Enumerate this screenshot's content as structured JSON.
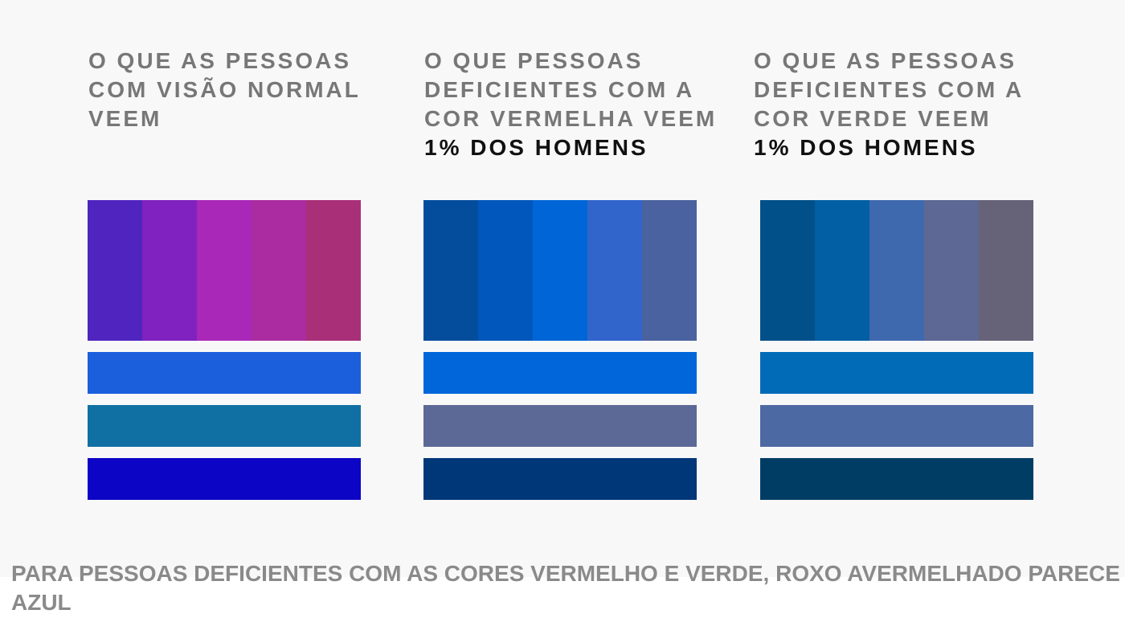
{
  "columns": [
    {
      "lines": [
        "O QUE AS PESSOAS",
        "COM VISÃO NORMAL",
        "VEEM"
      ],
      "stat": "",
      "top_colors": [
        "#5024bf",
        "#8022bf",
        "#a928b8",
        "#ab2ca0",
        "#a93078"
      ],
      "bar_colors": [
        "#1c5fdc",
        "#1170a3",
        "#0c05c6"
      ]
    },
    {
      "lines": [
        "O QUE PESSOAS",
        "DEFICIENTES COM A",
        "COR VERMELHA VEEM"
      ],
      "stat": "1% DOS HOMENS",
      "top_colors": [
        "#044d9d",
        "#0257bc",
        "#0066d7",
        "#3165cb",
        "#4b62a0"
      ],
      "bar_colors": [
        "#0166d9",
        "#5c6896",
        "#003778"
      ]
    },
    {
      "lines": [
        "O QUE AS PESSOAS",
        "DEFICIENTES COM A",
        "COR VERDE VEEM"
      ],
      "stat": "1% DOS HOMENS",
      "top_colors": [
        "#025089",
        "#025fa4",
        "#3f69ae",
        "#5d6894",
        "#666378"
      ],
      "bar_colors": [
        "#016bb7",
        "#4d69a3",
        "#003d65"
      ]
    }
  ],
  "footer": {
    "text": "PARA PESSOAS DEFICIENTES COM AS CORES VERMELHO E VERDE, ROXO AVERMELHADO PARECE AZUL"
  }
}
